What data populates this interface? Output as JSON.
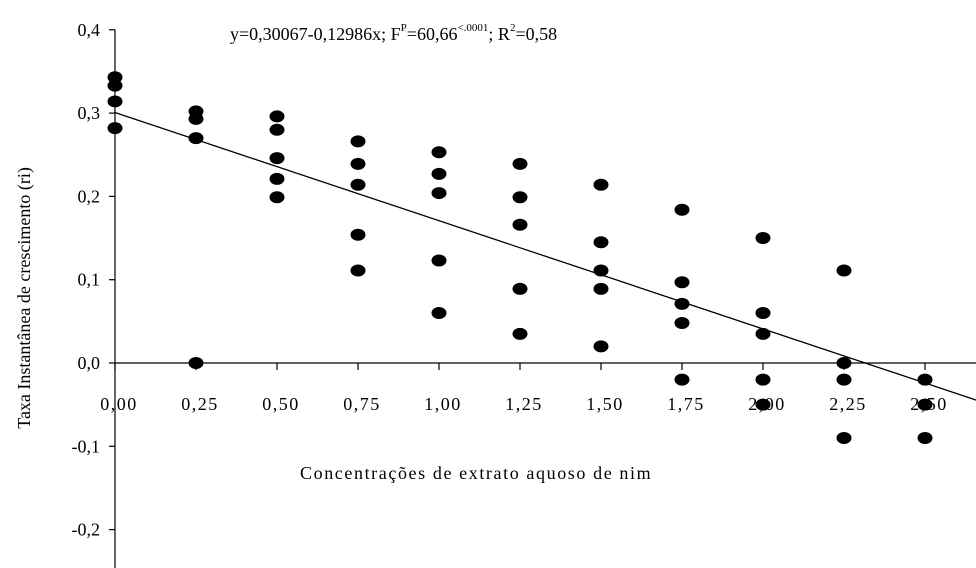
{
  "chart_data": {
    "type": "scatter",
    "title": "",
    "xlabel": "Concentrações de extrato aquoso de nim",
    "ylabel": "Taxa Instantânea de crescimento (ri)",
    "xlim": [
      0,
      2.875
    ],
    "ylim": [
      -0.25,
      0.4
    ],
    "grid": false,
    "legend": "none",
    "x_ticks": [
      0,
      0.25,
      0.5,
      0.75,
      1.0,
      1.25,
      1.5,
      1.75,
      2.0,
      2.25,
      2.5
    ],
    "x_tick_labels": [
      "0,00",
      "0,25",
      "0,50",
      "0,75",
      "1,00",
      "1,25",
      "1,50",
      "1,75",
      "2,00",
      "2,25",
      "2,50"
    ],
    "y_ticks": [
      -0.2,
      -0.1,
      0.0,
      0.1,
      0.2,
      0.3,
      0.4
    ],
    "y_tick_labels": [
      "-0,2",
      "-0,1",
      "0,0",
      "0,1",
      "0,2",
      "0,3",
      "0,4"
    ],
    "annotation": {
      "eq_main": "y=0,30067-0,12986x; F",
      "eq_p_sup": "P",
      "eq_f_value": "=60,66",
      "eq_f_sup": "<.0001",
      "eq_r_part": "; R",
      "eq_r_sup": "2",
      "eq_r_value": "=0,58"
    },
    "regression": {
      "intercept": 0.30067,
      "slope": -0.12986,
      "x_range": [
        0,
        2.875
      ]
    },
    "marker_color": "#000000",
    "line_color": "#000000",
    "points": [
      [
        0.0,
        0.343
      ],
      [
        0.0,
        0.333
      ],
      [
        0.0,
        0.314
      ],
      [
        0.0,
        0.282
      ],
      [
        0.25,
        0.302
      ],
      [
        0.25,
        0.293
      ],
      [
        0.25,
        0.27
      ],
      [
        0.25,
        0.0
      ],
      [
        0.5,
        0.296
      ],
      [
        0.5,
        0.28
      ],
      [
        0.5,
        0.246
      ],
      [
        0.5,
        0.221
      ],
      [
        0.5,
        0.199
      ],
      [
        0.75,
        0.266
      ],
      [
        0.75,
        0.239
      ],
      [
        0.75,
        0.214
      ],
      [
        0.75,
        0.154
      ],
      [
        0.75,
        0.111
      ],
      [
        1.0,
        0.253
      ],
      [
        1.0,
        0.227
      ],
      [
        1.0,
        0.204
      ],
      [
        1.0,
        0.123
      ],
      [
        1.0,
        0.06
      ],
      [
        1.25,
        0.239
      ],
      [
        1.25,
        0.199
      ],
      [
        1.25,
        0.166
      ],
      [
        1.25,
        0.089
      ],
      [
        1.25,
        0.035
      ],
      [
        1.5,
        0.214
      ],
      [
        1.5,
        0.145
      ],
      [
        1.5,
        0.111
      ],
      [
        1.5,
        0.089
      ],
      [
        1.5,
        0.02
      ],
      [
        1.75,
        0.184
      ],
      [
        1.75,
        0.097
      ],
      [
        1.75,
        0.071
      ],
      [
        1.75,
        0.048
      ],
      [
        1.75,
        -0.02
      ],
      [
        2.0,
        0.15
      ],
      [
        2.0,
        0.06
      ],
      [
        2.0,
        0.035
      ],
      [
        2.0,
        -0.02
      ],
      [
        2.0,
        -0.05
      ],
      [
        2.25,
        0.111
      ],
      [
        2.25,
        0.0
      ],
      [
        2.25,
        -0.02
      ],
      [
        2.25,
        -0.09
      ],
      [
        2.5,
        -0.02
      ],
      [
        2.5,
        -0.05
      ],
      [
        2.5,
        -0.09
      ]
    ]
  }
}
